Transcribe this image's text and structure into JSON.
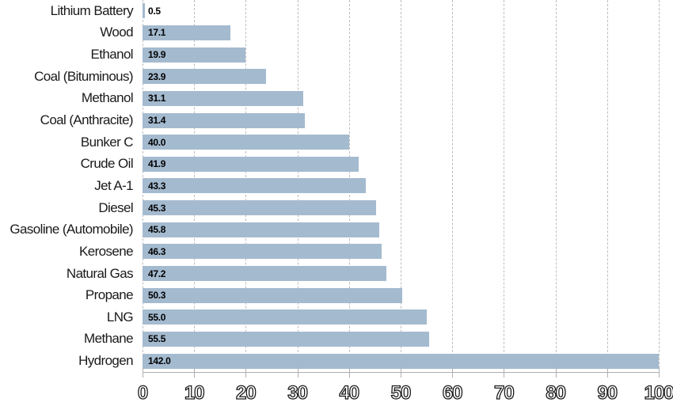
{
  "chart_data": {
    "type": "bar",
    "orientation": "horizontal",
    "title": "",
    "xlabel": "",
    "ylabel": "",
    "categories": [
      "Lithium Battery",
      "Wood",
      "Ethanol",
      "Coal (Bituminous)",
      "Methanol",
      "Coal (Anthracite)",
      "Bunker C",
      "Crude Oil",
      "Jet A-1",
      "Diesel",
      "Gasoline (Automobile)",
      "Kerosene",
      "Natural Gas",
      "Propane",
      "LNG",
      "Methane",
      "Hydrogen"
    ],
    "values": [
      0.5,
      17.1,
      19.9,
      23.9,
      31.1,
      31.4,
      40.0,
      41.9,
      43.3,
      45.3,
      45.8,
      46.3,
      47.2,
      50.3,
      55.0,
      55.5,
      142.0
    ],
    "value_labels": [
      "0.5",
      "17.1",
      "19.9",
      "23.9",
      "31.1",
      "31.4",
      "40.0",
      "41.9",
      "43.3",
      "45.3",
      "45.8",
      "46.3",
      "47.2",
      "50.3",
      "55.0",
      "55.5",
      "142.0"
    ],
    "xlim": [
      0,
      100
    ],
    "x_ticks": [
      0,
      10,
      20,
      30,
      40,
      50,
      60,
      70,
      80,
      90,
      100
    ],
    "grid": "vertical-dashed",
    "legend": "none",
    "colors": {
      "bar_fill": "#a4bacf",
      "value_label": "#000000",
      "category_label": "#1a1a1a",
      "axis_line": "#b0b0b0",
      "gridline": "#bdbdbd",
      "tick_label_outline": "#1a1a1a",
      "background": "#ffffff"
    }
  }
}
